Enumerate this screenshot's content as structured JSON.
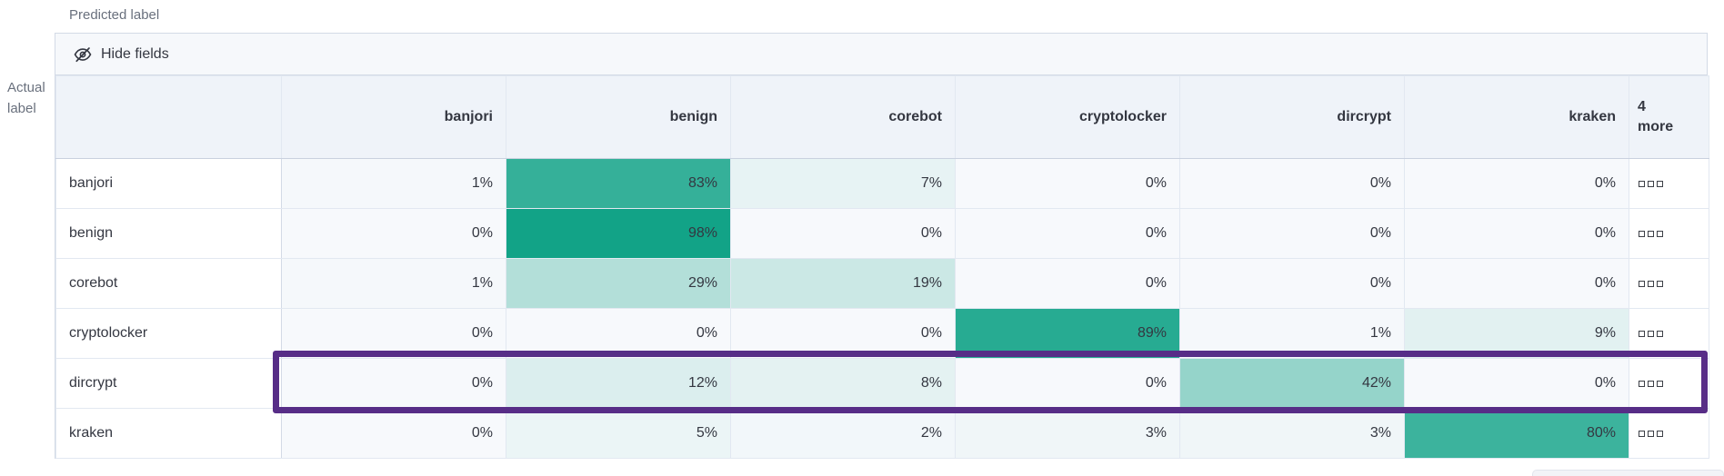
{
  "labels": {
    "predicted_axis": "Predicted label",
    "actual_axis": "Actual label"
  },
  "toolbar": {
    "hide_fields_label": "Hide fields",
    "icon": "eye-closed-icon"
  },
  "chart_data": {
    "type": "heatmap",
    "title": "",
    "columns": [
      "banjori",
      "benign",
      "corebot",
      "cryptolocker",
      "dircrypt",
      "kraken"
    ],
    "more_columns_label": "4 more",
    "rows": [
      "banjori",
      "benign",
      "corebot",
      "cryptolocker",
      "dircrypt",
      "kraken"
    ],
    "values_percent": [
      [
        1,
        83,
        7,
        0,
        0,
        0
      ],
      [
        0,
        98,
        0,
        0,
        0,
        0
      ],
      [
        1,
        29,
        19,
        0,
        0,
        0
      ],
      [
        0,
        0,
        0,
        89,
        1,
        9
      ],
      [
        0,
        12,
        8,
        0,
        42,
        0
      ],
      [
        0,
        5,
        2,
        3,
        3,
        80
      ]
    ],
    "value_suffix": "%",
    "highlighted_row": "dircrypt",
    "row_actions_icon": "boxes-horizontal-icon",
    "legend": "none",
    "grid": "on"
  },
  "colors": {
    "heat_zero": "#f7f9fc",
    "heat_one": "#0da185",
    "highlight_border": "#572d87",
    "cell_text": "#343741",
    "axis_text": "#69707d",
    "grid_border": "#d3dae6",
    "header_bg": "#eff3f9",
    "toolbar_bg": "#f6f8fb"
  }
}
